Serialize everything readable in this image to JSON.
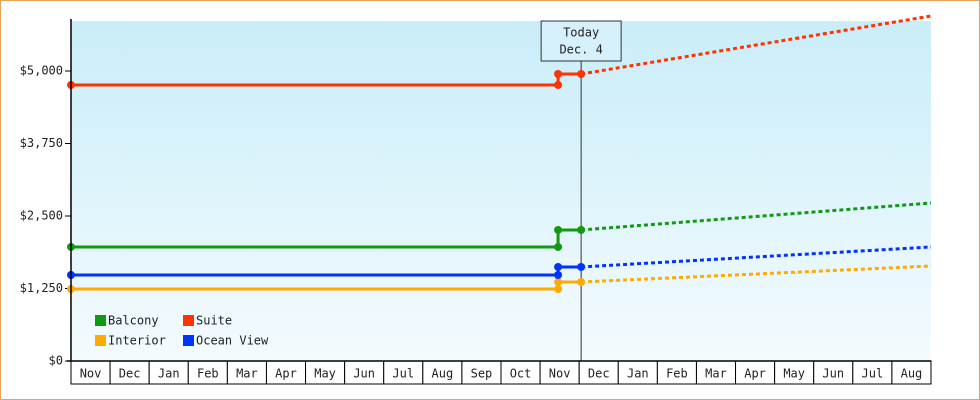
{
  "chart_data": {
    "type": "line",
    "categories": [
      "Nov",
      "Dec",
      "Jan",
      "Feb",
      "Mar",
      "Apr",
      "May",
      "Jun",
      "Jul",
      "Aug",
      "Sep",
      "Oct",
      "Nov",
      "Dec",
      "Jan",
      "Feb",
      "Mar",
      "Apr",
      "May",
      "Jun",
      "Jul",
      "Aug"
    ],
    "xlim": [
      0,
      22
    ],
    "ylim": [
      0,
      5862
    ],
    "yticks": [
      {
        "value": 0,
        "label": "$0"
      },
      {
        "value": 1250,
        "label": "$1,250"
      },
      {
        "value": 2500,
        "label": "$2,500"
      },
      {
        "value": 3750,
        "label": "$3,750"
      },
      {
        "value": 5000,
        "label": "$5,000"
      }
    ],
    "today": {
      "x": 13.05,
      "label": "Today",
      "date": "Dec. 4"
    },
    "series": [
      {
        "name": "Balcony",
        "color": "#119911",
        "x": [
          0,
          12.46,
          12.46,
          13.05
        ],
        "values": [
          1966,
          1966,
          2259,
          2259
        ],
        "forecast_x": [
          13.05,
          22
        ],
        "forecast_values": [
          2259,
          2724
        ]
      },
      {
        "name": "Suite",
        "color": "#ff3300",
        "x": [
          0,
          12.46,
          12.46,
          13.05
        ],
        "values": [
          4759,
          4759,
          4948,
          4948
        ],
        "forecast_x": [
          13.05,
          22
        ],
        "forecast_values": [
          4948,
          5948
        ]
      },
      {
        "name": "Interior",
        "color": "#ffaa00",
        "x": [
          0,
          12.46,
          12.46,
          13.05
        ],
        "values": [
          1241,
          1241,
          1362,
          1362
        ],
        "forecast_x": [
          13.05,
          22
        ],
        "forecast_values": [
          1362,
          1638
        ]
      },
      {
        "name": "Ocean View",
        "color": "#0033ff",
        "x": [
          0,
          12.46,
          12.46,
          13.05
        ],
        "values": [
          1483,
          1483,
          1621,
          1621
        ],
        "forecast_x": [
          13.05,
          22
        ],
        "forecast_values": [
          1621,
          1966
        ]
      }
    ]
  }
}
